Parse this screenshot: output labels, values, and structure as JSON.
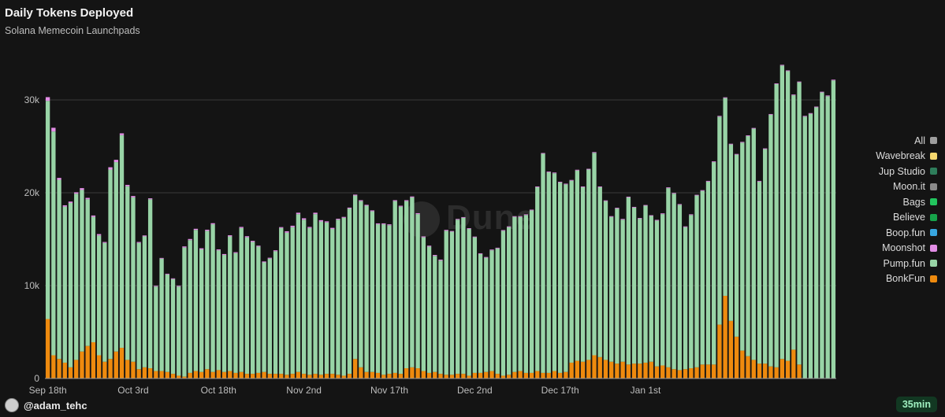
{
  "title": "Daily Tokens Deployed",
  "subtitle": "Solana Memecoin Launchpads",
  "watermark": "Dune",
  "user": "@adam_tehc",
  "refresh_badge": "35min",
  "legend": [
    {
      "label": "All",
      "color": "#9e9e9e"
    },
    {
      "label": "Wavebreak",
      "color": "#f5d76e"
    },
    {
      "label": "Jup Studio",
      "color": "#2e7d5b"
    },
    {
      "label": "Moon.it",
      "color": "#8a8a8a"
    },
    {
      "label": "Bags",
      "color": "#22c55e"
    },
    {
      "label": "Believe",
      "color": "#16a34a"
    },
    {
      "label": "Boop.fun",
      "color": "#38a6e0"
    },
    {
      "label": "Moonshot",
      "color": "#e38ee6"
    },
    {
      "label": "Pump.fun",
      "color": "#98d4a6"
    },
    {
      "label": "BonkFun",
      "color": "#ee8a0e"
    }
  ],
  "chart_data": {
    "type": "bar",
    "stacked": true,
    "title": "Daily Tokens Deployed",
    "subtitle": "Solana Memecoin Launchpads",
    "x_tick_labels": [
      "Sep 18th",
      "Oct 3rd",
      "Oct 18th",
      "Nov 2nd",
      "Nov 17th",
      "Dec 2nd",
      "Dec 17th",
      "Jan 1st"
    ],
    "y_tick_labels": [
      "0",
      "10k",
      "20k",
      "30k"
    ],
    "ylim": [
      0,
      36000
    ],
    "grid": true,
    "legend_position": "right",
    "start_date": "2024-09-18",
    "totals": [
      30800,
      27200,
      21800,
      18800,
      19200,
      20200,
      20600,
      19800,
      17700,
      15800,
      14900,
      22900,
      23600,
      26700,
      21100,
      19900,
      14900,
      15900,
      19900,
      10200,
      13300,
      11500,
      11000,
      10100,
      14400,
      15600,
      16300,
      14200,
      16300,
      16900,
      14100,
      13600,
      15600,
      13900,
      16500,
      15700,
      15200,
      14500,
      12800,
      13200,
      14000,
      16500,
      17000,
      18000,
      19800,
      18300,
      17000,
      18300,
      17200,
      17000,
      16200,
      17200,
      18700,
      19400,
      20800,
      20200,
      19700,
      18400,
      17000,
      17000,
      16800,
      19500,
      19600,
      19300,
      19800,
      17900,
      15200,
      14300,
      13300,
      13000,
      16100,
      15900,
      17600,
      17600,
      16400,
      15300,
      13400,
      12900,
      13600,
      14000,
      15900,
      16400,
      17400,
      17400,
      17600,
      18100,
      20600,
      24200,
      22400,
      22100,
      21300,
      21000,
      20400,
      21300,
      19600,
      21300,
      22500,
      20200,
      19100,
      17500,
      18800,
      17400,
      20000,
      18600,
      17500,
      18600,
      17500,
      17500,
      18000,
      21200,
      20800,
      19600,
      16800,
      17800,
      19800,
      20000,
      21000,
      23200,
      24200,
      22600,
      20300,
      21200,
      24700,
      25800,
      27500,
      24400,
      26200,
      28000,
      34900,
      32400,
      33700,
      29700,
      31600,
      29500,
      27000,
      30600,
      33300,
      34300,
      34400
    ],
    "series": [
      {
        "name": "BonkFun",
        "values": [
          6400,
          2500,
          2100,
          1700,
          1200,
          2000,
          2900,
          3500,
          3900,
          2500,
          1800,
          2100,
          2900,
          3300,
          2000,
          1800,
          1000,
          1200,
          1100,
          800,
          800,
          700,
          500,
          300,
          200,
          600,
          800,
          700,
          1000,
          700,
          900,
          700,
          800,
          600,
          700,
          500,
          500,
          600,
          700,
          500,
          500,
          500,
          400,
          500,
          700,
          500,
          400,
          500,
          400,
          500,
          500,
          400,
          300,
          500,
          2100,
          1200,
          700,
          700,
          600,
          400,
          500,
          600,
          500,
          1100,
          1200,
          1100,
          800,
          600,
          700,
          500,
          400,
          400,
          500,
          500,
          300,
          600,
          600,
          700,
          800,
          500,
          300,
          400,
          700,
          800,
          600,
          600,
          800,
          600,
          600,
          800,
          600,
          700,
          1700,
          1900,
          1800,
          2000,
          2500,
          2300,
          2000,
          1800,
          1600,
          1800,
          1500,
          1600,
          1600,
          1700,
          1800,
          1300,
          1400,
          1200,
          1000,
          900,
          1000,
          1100,
          1200,
          1500,
          1500,
          1500,
          5800,
          8900,
          6200,
          4500,
          3000,
          2400,
          2000,
          1600,
          1600,
          1300,
          1200,
          2100,
          1900,
          3100,
          1500
        ]
      },
      {
        "name": "Pump.fun",
        "values": [
          23500,
          24100,
          19300,
          16800,
          17700,
          17900,
          17400,
          15800,
          13500,
          12900,
          12800,
          20400,
          20400,
          22900,
          18700,
          17700,
          13600,
          14100,
          18200,
          9100,
          12100,
          10500,
          10200,
          9600,
          13900,
          14300,
          15200,
          13200,
          14900,
          15900,
          12900,
          12600,
          14500,
          12900,
          15500,
          14700,
          14200,
          13600,
          11800,
          12400,
          13200,
          15700,
          15300,
          15800,
          17000,
          16600,
          15800,
          17200,
          16500,
          16300,
          15600,
          16700,
          17000,
          17800,
          17600,
          17900,
          17900,
          17300,
          16000,
          16200,
          16000,
          18500,
          18000,
          18000,
          18300,
          16600,
          14400,
          13600,
          12500,
          12200,
          15500,
          15400,
          16600,
          16800,
          15800,
          14600,
          12800,
          12300,
          13000,
          13500,
          15600,
          15900,
          16700,
          16600,
          17000,
          17500,
          19800,
          23600,
          21600,
          21300,
          20500,
          20200,
          19600,
          20500,
          18800,
          20500,
          21800,
          18300,
          17100,
          15600,
          16700,
          15300,
          18000,
          16800,
          15600,
          16900,
          15700,
          15700,
          16300,
          19300,
          18900,
          17800,
          15300,
          16500,
          18500,
          18700,
          19700,
          21800,
          22400,
          21300,
          19000,
          19600,
          22400,
          23700,
          24900,
          19600,
          23100,
          27100,
          30500,
          31600,
          31200,
          27400,
          30400,
          28200,
          28500,
          29200,
          30800,
          30400,
          32100
        ]
      },
      {
        "name": "Moonshot",
        "values": [
          400,
          400,
          200,
          150,
          150,
          150,
          200,
          150,
          150,
          150,
          100,
          250,
          250,
          200,
          150,
          150,
          100,
          100,
          100,
          80,
          80,
          80,
          80,
          80,
          120,
          120,
          120,
          120,
          120,
          120,
          100,
          100,
          120,
          100,
          120,
          120,
          120,
          100,
          100,
          100,
          100,
          100,
          150,
          150,
          150,
          150,
          120,
          150,
          150,
          120,
          120,
          100,
          100,
          100,
          100,
          100,
          100,
          100,
          100,
          100,
          100,
          100,
          100,
          100,
          100,
          100,
          100,
          100,
          100,
          100,
          100,
          80,
          80,
          80,
          80,
          80,
          80,
          80,
          80,
          80,
          80,
          80,
          80,
          80,
          80,
          80,
          80,
          80,
          80,
          80,
          80,
          80,
          80,
          80,
          80,
          80,
          80,
          80,
          80,
          80,
          80,
          80,
          80,
          80,
          80,
          80,
          80,
          80,
          80,
          80,
          80,
          80,
          80,
          80,
          80,
          80,
          80,
          80,
          80,
          80,
          80,
          80,
          80,
          80,
          80,
          80,
          80,
          80,
          80,
          80,
          80,
          80,
          80,
          80,
          80,
          80,
          80,
          80,
          80
        ]
      },
      {
        "name": "Believe",
        "values": [
          0,
          0,
          0,
          0,
          0,
          0,
          0,
          0,
          0,
          0,
          0,
          0,
          0,
          0,
          0,
          0,
          0,
          0,
          0,
          0,
          0,
          0,
          0,
          0,
          0,
          0,
          0,
          0,
          0,
          0,
          0,
          0,
          0,
          0,
          0,
          0,
          0,
          0,
          0,
          0,
          0,
          0,
          0,
          0,
          0,
          0,
          0,
          0,
          0,
          0,
          0,
          0,
          0,
          0,
          0,
          0,
          0,
          0,
          0,
          0,
          0,
          0,
          0,
          0,
          0,
          0,
          0,
          0,
          0,
          0,
          0,
          0,
          0,
          0,
          0,
          0,
          0,
          0,
          0,
          0,
          0,
          0,
          0,
          0,
          0,
          0,
          0,
          0,
          0,
          0,
          0,
          0,
          0,
          0,
          0,
          0,
          0,
          0,
          0,
          0,
          0,
          0,
          0,
          0,
          0,
          0,
          0,
          0,
          0,
          0,
          0,
          0,
          0,
          0,
          0,
          0,
          0,
          0,
          0,
          0,
          0,
          0,
          0,
          0,
          0,
          0,
          0,
          0,
          0,
          0,
          0,
          0,
          0,
          0,
          0,
          0,
          0,
          0,
          0
        ]
      },
      {
        "name": "Bags",
        "values": [
          0,
          0,
          0,
          0,
          0,
          0,
          0,
          0,
          0,
          0,
          0,
          0,
          0,
          0,
          0,
          0,
          0,
          0,
          0,
          0,
          0,
          0,
          0,
          0,
          0,
          0,
          0,
          0,
          0,
          0,
          0,
          0,
          0,
          0,
          0,
          0,
          0,
          0,
          0,
          0,
          0,
          0,
          0,
          0,
          0,
          0,
          0,
          0,
          0,
          0,
          0,
          0,
          0,
          0,
          0,
          0,
          0,
          0,
          0,
          0,
          0,
          0,
          0,
          0,
          0,
          0,
          0,
          0,
          0,
          0,
          0,
          0,
          0,
          0,
          0,
          0,
          0,
          0,
          0,
          0,
          0,
          0,
          0,
          0,
          0,
          0,
          0,
          0,
          0,
          0,
          0,
          0,
          0,
          0,
          0,
          0,
          0,
          0,
          0,
          0,
          0,
          0,
          0,
          0,
          0,
          0,
          0,
          0,
          0,
          0,
          0,
          0,
          0,
          0,
          0,
          0,
          0,
          0,
          0,
          0,
          0,
          0,
          0,
          0,
          0,
          0,
          0,
          0,
          0,
          0,
          0,
          0,
          0,
          0,
          0,
          0,
          0,
          0,
          0
        ]
      },
      {
        "name": "Jup Studio",
        "values": [
          0,
          0,
          0,
          0,
          0,
          0,
          0,
          0,
          0,
          0,
          0,
          0,
          0,
          0,
          0,
          0,
          0,
          0,
          0,
          0,
          0,
          0,
          0,
          0,
          0,
          0,
          0,
          0,
          0,
          0,
          0,
          0,
          0,
          0,
          0,
          0,
          0,
          0,
          0,
          0,
          0,
          0,
          0,
          0,
          0,
          0,
          0,
          0,
          0,
          0,
          0,
          0,
          0,
          0,
          0,
          0,
          0,
          0,
          0,
          0,
          0,
          0,
          0,
          0,
          0,
          0,
          0,
          0,
          0,
          0,
          0,
          0,
          0,
          0,
          0,
          0,
          0,
          0,
          0,
          0,
          0,
          0,
          0,
          0,
          0,
          0,
          0,
          0,
          0,
          0,
          0,
          0,
          0,
          0,
          0,
          0,
          0,
          0,
          0,
          0,
          0,
          0,
          0,
          0,
          0,
          0,
          0,
          0,
          0,
          0,
          0,
          0,
          0,
          0,
          0,
          0,
          0,
          0,
          0,
          0,
          0,
          0,
          0,
          0,
          0,
          0,
          0,
          0,
          0,
          0,
          0,
          0,
          0,
          0,
          0,
          0,
          0,
          0,
          0
        ]
      }
    ]
  }
}
